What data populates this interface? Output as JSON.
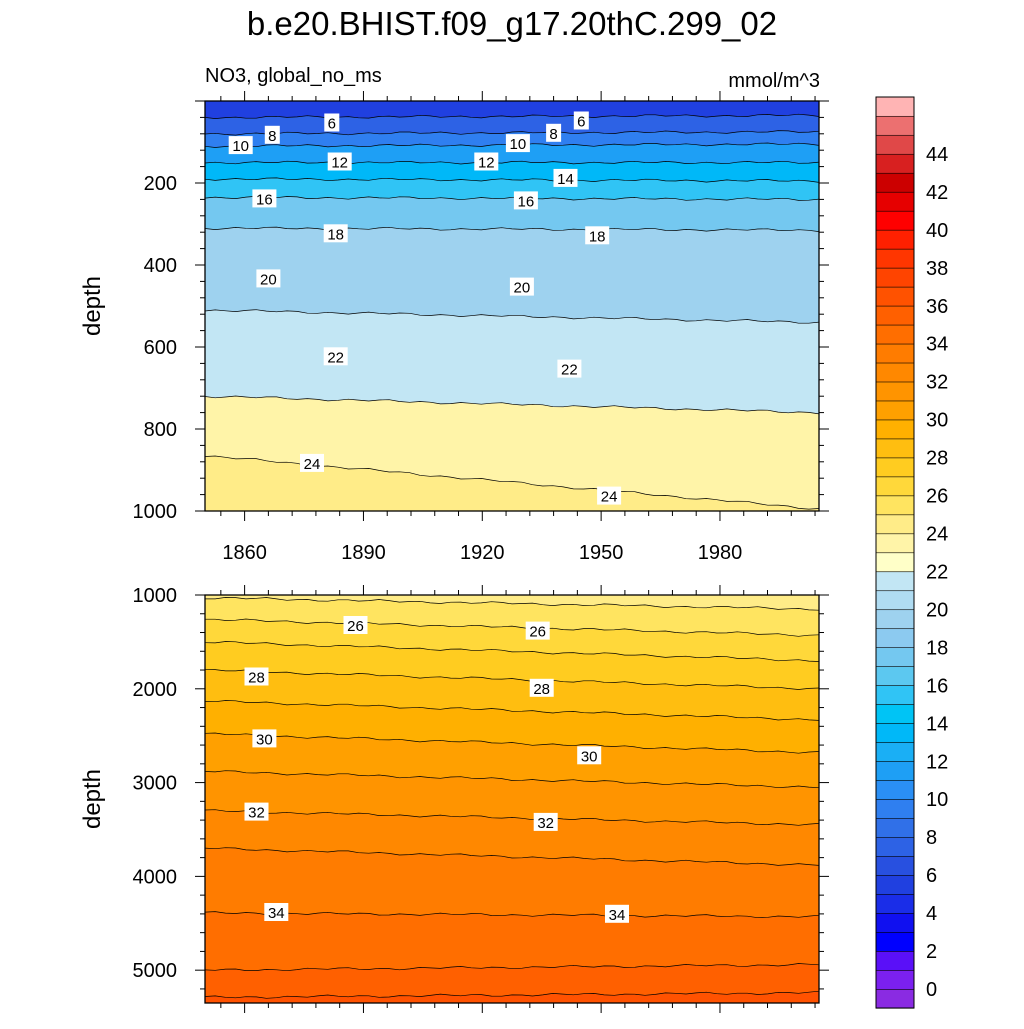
{
  "title": "b.e20.BHIST.f09_g17.20thC.299_02",
  "chart_data": {
    "type": "heatmap",
    "subtitle_left": "NO3, global_no_ms",
    "subtitle_right": "mmol/m^3",
    "x_ticks": [
      1860,
      1890,
      1920,
      1950,
      1980
    ],
    "xlim": [
      1850,
      2005
    ],
    "colorbar": {
      "labels": [
        0,
        2,
        4,
        6,
        8,
        10,
        12,
        14,
        16,
        18,
        20,
        22,
        24,
        26,
        28,
        30,
        32,
        34,
        36,
        38,
        40,
        42,
        44
      ],
      "colors": [
        "#8a2be2",
        "#7b20f0",
        "#5a10f8",
        "#0000ff",
        "#1010f0",
        "#1a2de8",
        "#2040e0",
        "#2850e0",
        "#2d62e5",
        "#3070e8",
        "#2f7ff0",
        "#2a8ff5",
        "#1e9ff5",
        "#1aaff5",
        "#00b8f8",
        "#00c4f5",
        "#30c4f5",
        "#5cc8f0",
        "#74c8f0",
        "#8ccaf0",
        "#9ed2ef",
        "#b0dcf2",
        "#c2e6f4",
        "#ffffc8",
        "#fff4a8",
        "#ffec88",
        "#ffe460",
        "#ffd83a",
        "#ffcc20",
        "#ffbe10",
        "#ffb000",
        "#ffa000",
        "#ff9400",
        "#ff8800",
        "#ff7c00",
        "#ff6e00",
        "#ff6000",
        "#ff5200",
        "#ff4400",
        "#ff3600",
        "#ff2000",
        "#ff0000",
        "#e60000",
        "#cc0000",
        "#d82020",
        "#e04848",
        "#ec7070",
        "#ffb4b4"
      ]
    },
    "panels": [
      {
        "name": "upper",
        "ylabel": "depth",
        "ylim": [
          0,
          1000
        ],
        "y_ticks": [
          200,
          400,
          600,
          800,
          1000
        ],
        "show_x_labels": true,
        "contours": [
          {
            "level": 6,
            "depth_start": 40,
            "depth_end": 35
          },
          {
            "level": 8,
            "depth_start": 80,
            "depth_end": 75
          },
          {
            "level": 10,
            "depth_start": 110,
            "depth_end": 105
          },
          {
            "level": 12,
            "depth_start": 150,
            "depth_end": 150
          },
          {
            "level": 14,
            "depth_start": 190,
            "depth_end": 195
          },
          {
            "level": 16,
            "depth_start": 235,
            "depth_end": 240
          },
          {
            "level": 18,
            "depth_start": 310,
            "depth_end": 315
          },
          {
            "level": 20,
            "depth_start": 510,
            "depth_end": 540
          },
          {
            "level": 22,
            "depth_start": 720,
            "depth_end": 760
          },
          {
            "level": 24,
            "depth_start": 865,
            "depth_end": 995
          }
        ],
        "labels": [
          {
            "text": "6",
            "year": 1882,
            "depth": 55
          },
          {
            "text": "6",
            "year": 1945,
            "depth": 50
          },
          {
            "text": "8",
            "year": 1867,
            "depth": 85
          },
          {
            "text": "8",
            "year": 1938,
            "depth": 80
          },
          {
            "text": "10",
            "year": 1859,
            "depth": 110
          },
          {
            "text": "10",
            "year": 1929,
            "depth": 105
          },
          {
            "text": "12",
            "year": 1884,
            "depth": 150
          },
          {
            "text": "12",
            "year": 1921,
            "depth": 150
          },
          {
            "text": "14",
            "year": 1941,
            "depth": 190
          },
          {
            "text": "16",
            "year": 1865,
            "depth": 240
          },
          {
            "text": "16",
            "year": 1931,
            "depth": 245
          },
          {
            "text": "18",
            "year": 1883,
            "depth": 325
          },
          {
            "text": "18",
            "year": 1949,
            "depth": 330
          },
          {
            "text": "20",
            "year": 1866,
            "depth": 435
          },
          {
            "text": "20",
            "year": 1930,
            "depth": 455
          },
          {
            "text": "22",
            "year": 1883,
            "depth": 625
          },
          {
            "text": "22",
            "year": 1942,
            "depth": 655
          },
          {
            "text": "24",
            "year": 1877,
            "depth": 885
          },
          {
            "text": "24",
            "year": 1952,
            "depth": 965
          }
        ]
      },
      {
        "name": "lower",
        "ylabel": "depth",
        "ylim": [
          1000,
          5350
        ],
        "y_ticks": [
          1000,
          2000,
          3000,
          4000,
          5000
        ],
        "show_x_labels": false,
        "contours": [
          {
            "level": 25,
            "depth_start": 1030,
            "depth_end": 1150
          },
          {
            "level": 26,
            "depth_start": 1260,
            "depth_end": 1430
          },
          {
            "level": 27,
            "depth_start": 1500,
            "depth_end": 1700
          },
          {
            "level": 28,
            "depth_start": 1800,
            "depth_end": 2000
          },
          {
            "level": 29,
            "depth_start": 2130,
            "depth_end": 2330
          },
          {
            "level": 30,
            "depth_start": 2480,
            "depth_end": 2680
          },
          {
            "level": 31,
            "depth_start": 2880,
            "depth_end": 3050
          },
          {
            "level": 32,
            "depth_start": 3300,
            "depth_end": 3450
          },
          {
            "level": 33,
            "depth_start": 3700,
            "depth_end": 3880
          },
          {
            "level": 34,
            "depth_start": 4390,
            "depth_end": 4430
          },
          {
            "level": 35,
            "depth_start": 5000,
            "depth_end": 4940
          },
          {
            "level": 36,
            "depth_start": 5290,
            "depth_end": 5240
          }
        ],
        "labels": [
          {
            "text": "26",
            "year": 1888,
            "depth": 1330
          },
          {
            "text": "26",
            "year": 1934,
            "depth": 1390
          },
          {
            "text": "28",
            "year": 1863,
            "depth": 1880
          },
          {
            "text": "28",
            "year": 1935,
            "depth": 2000
          },
          {
            "text": "30",
            "year": 1865,
            "depth": 2540
          },
          {
            "text": "30",
            "year": 1947,
            "depth": 2720
          },
          {
            "text": "32",
            "year": 1863,
            "depth": 3320
          },
          {
            "text": "32",
            "year": 1936,
            "depth": 3430
          },
          {
            "text": "34",
            "year": 1868,
            "depth": 4390
          },
          {
            "text": "34",
            "year": 1954,
            "depth": 4410
          }
        ]
      }
    ]
  }
}
